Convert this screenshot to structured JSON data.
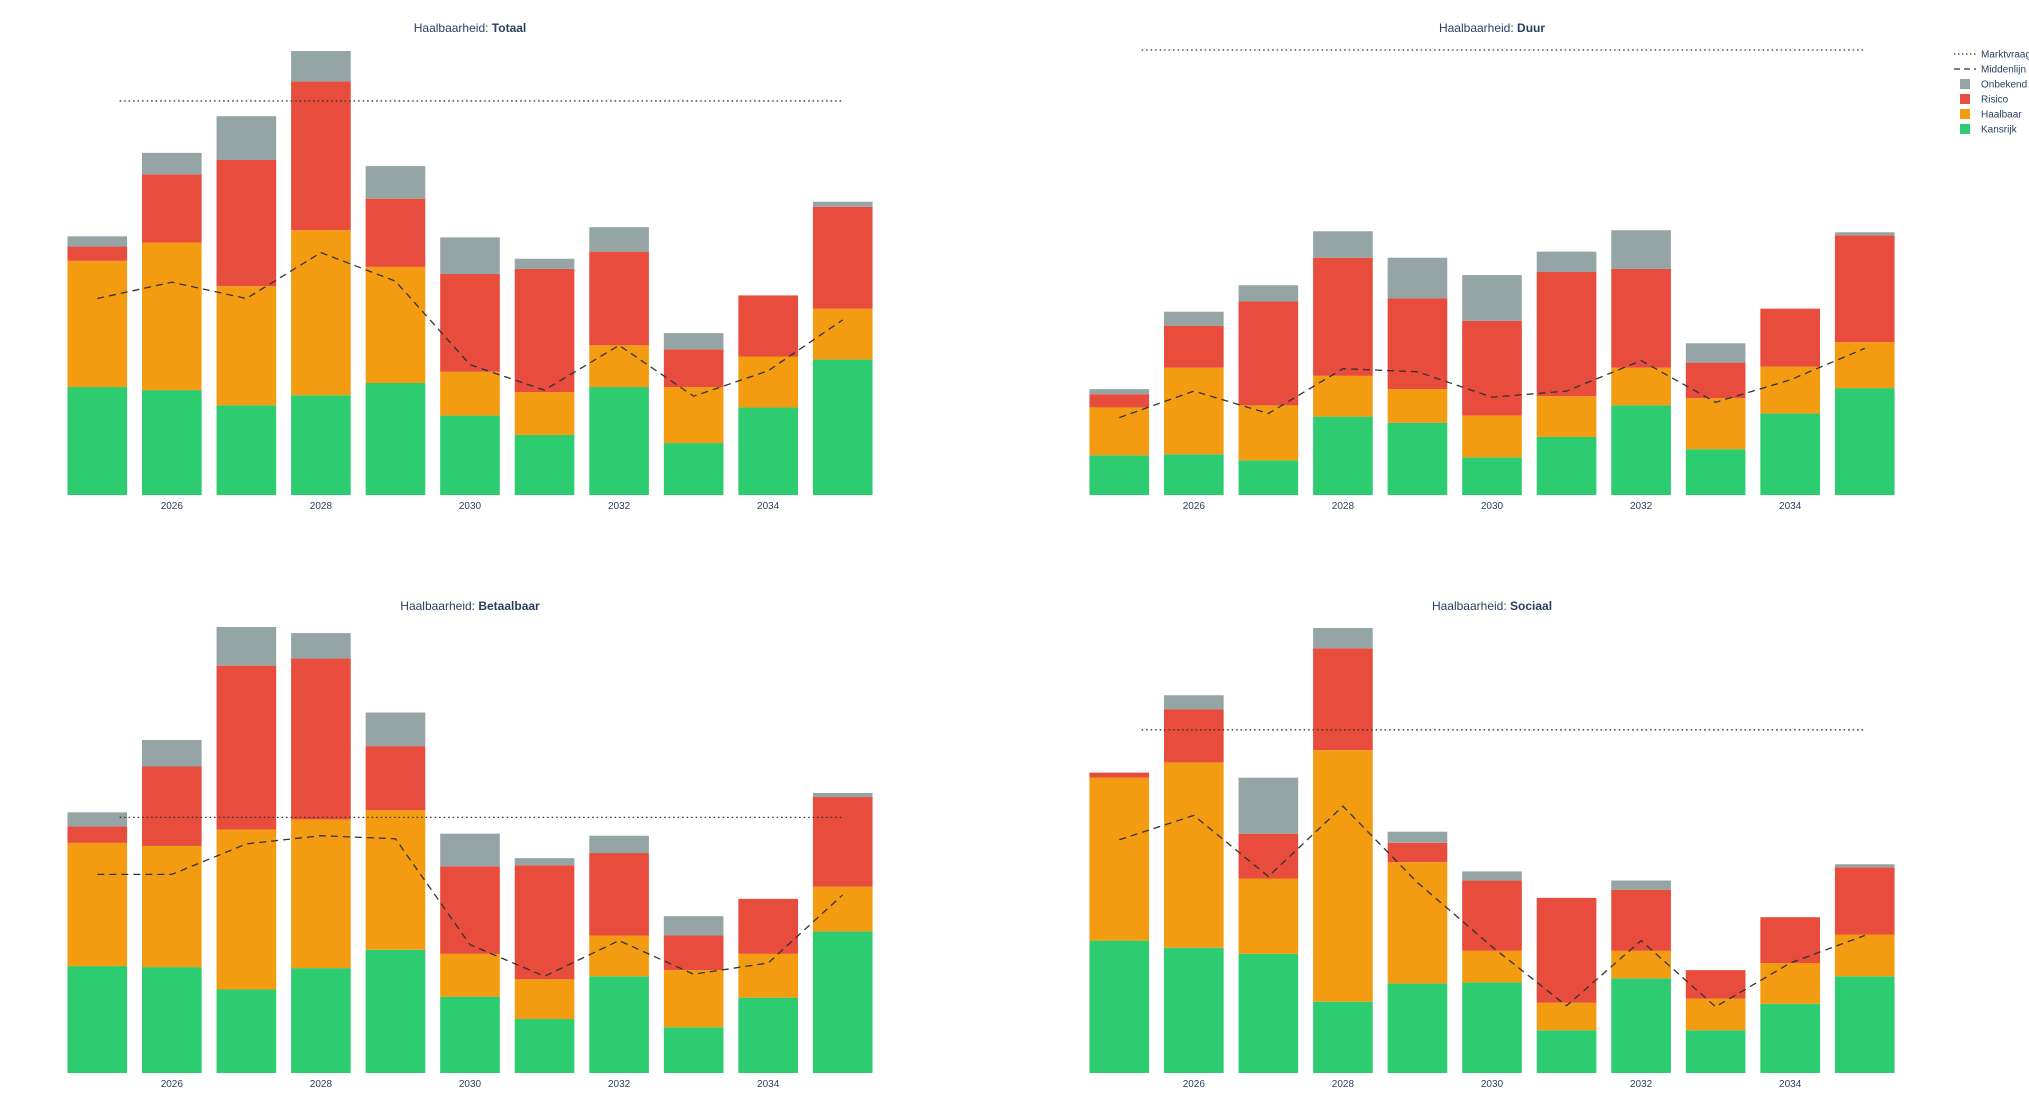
{
  "colors": {
    "Kansrijk": "#2ecc71",
    "Haalbaar": "#f39c12",
    "Risico": "#e74c3c",
    "Onbekend": "#95a5a6",
    "Middenlijn": "#333333",
    "Marktvraag": "#333333"
  },
  "legend": [
    {
      "key": "Marktvraag",
      "label": "Marktvraag",
      "kind": "dotted"
    },
    {
      "key": "Middenlijn",
      "label": "Middenlijn",
      "kind": "dashed"
    },
    {
      "key": "Onbekend",
      "label": "Onbekend",
      "kind": "box"
    },
    {
      "key": "Risico",
      "label": "Risico",
      "kind": "box"
    },
    {
      "key": "Haalbaar",
      "label": "Haalbaar",
      "kind": "box"
    },
    {
      "key": "Kansrijk",
      "label": "Kansrijk",
      "kind": "box"
    }
  ],
  "chart_data": [
    {
      "type": "bar",
      "stacked": true,
      "title_prefix": "Haalbaarheid: ",
      "title_bold": "Totaal",
      "x": [
        2025,
        2026,
        2027,
        2028,
        2029,
        2030,
        2031,
        2032,
        2033,
        2034,
        2035
      ],
      "x_tick_labels": [
        "2026",
        "2028",
        "2030",
        "2032",
        "2034"
      ],
      "x_tick_values": [
        2026,
        2028,
        2030,
        2032,
        2034
      ],
      "ylim": [
        0,
        437
      ],
      "series": [
        {
          "name": "Kansrijk",
          "values": [
            106,
            103,
            88,
            98,
            110,
            78,
            59,
            106,
            51,
            86,
            133
          ]
        },
        {
          "name": "Haalbaar",
          "values": [
            124,
            145,
            117,
            162,
            114,
            43,
            42,
            41,
            55,
            50,
            50
          ]
        },
        {
          "name": "Risico",
          "values": [
            14,
            67,
            124,
            146,
            67,
            96,
            121,
            92,
            37,
            60,
            100
          ]
        },
        {
          "name": "Onbekend",
          "values": [
            10,
            21,
            43,
            30,
            32,
            36,
            10,
            24,
            16,
            0,
            5
          ]
        }
      ],
      "middenlijn": [
        193,
        209,
        193,
        238,
        210,
        128,
        103,
        147,
        97,
        122,
        172
      ],
      "marktvraag": 387
    },
    {
      "type": "bar",
      "stacked": true,
      "title_prefix": "Haalbaarheid: ",
      "title_bold": "Duur",
      "x": [
        2025,
        2026,
        2027,
        2028,
        2029,
        2030,
        2031,
        2032,
        2033,
        2034,
        2035
      ],
      "x_tick_labels": [
        "2026",
        "2028",
        "2030",
        "2032",
        "2034"
      ],
      "x_tick_values": [
        2026,
        2028,
        2030,
        2032,
        2034
      ],
      "ylim": [
        0,
        437
      ],
      "series": [
        {
          "name": "Kansrijk",
          "values": [
            39,
            40,
            34,
            77,
            71,
            37,
            57,
            88,
            45,
            80,
            105
          ]
        },
        {
          "name": "Haalbaar",
          "values": [
            47,
            85,
            54,
            40,
            33,
            41,
            40,
            37,
            50,
            46,
            45
          ]
        },
        {
          "name": "Risico",
          "values": [
            13,
            41,
            102,
            116,
            89,
            93,
            122,
            97,
            35,
            57,
            105
          ]
        },
        {
          "name": "Onbekend",
          "values": [
            5,
            14,
            16,
            26,
            40,
            45,
            20,
            38,
            19,
            0,
            3
          ]
        }
      ],
      "middenlijn": [
        76,
        102,
        80,
        124,
        121,
        96,
        102,
        132,
        91,
        113,
        144
      ],
      "marktvraag": 437
    },
    {
      "type": "bar",
      "stacked": true,
      "title_prefix": "Haalbaarheid: ",
      "title_bold": "Betaalbaar",
      "x": [
        2025,
        2026,
        2027,
        2028,
        2029,
        2030,
        2031,
        2032,
        2033,
        2034,
        2035
      ],
      "x_tick_labels": [
        "2026",
        "2028",
        "2030",
        "2032",
        "2034"
      ],
      "x_tick_values": [
        2026,
        2028,
        2030,
        2032,
        2034
      ],
      "ylim": [
        0,
        437
      ],
      "series": [
        {
          "name": "Kansrijk",
          "values": [
            105,
            104,
            82,
            103,
            121,
            75,
            53,
            95,
            45,
            74,
            139
          ]
        },
        {
          "name": "Haalbaar",
          "values": [
            121,
            119,
            157,
            146,
            137,
            42,
            39,
            40,
            56,
            43,
            44
          ]
        },
        {
          "name": "Risico",
          "values": [
            16,
            78,
            161,
            158,
            63,
            86,
            112,
            81,
            34,
            54,
            88
          ]
        },
        {
          "name": "Onbekend",
          "values": [
            14,
            26,
            38,
            25,
            33,
            32,
            7,
            17,
            19,
            0,
            4
          ]
        }
      ],
      "middenlijn": [
        195,
        195,
        225,
        233,
        230,
        126,
        95,
        130,
        97,
        108,
        175
      ],
      "marktvraag": 251
    },
    {
      "type": "bar",
      "stacked": true,
      "title_prefix": "Haalbaarheid: ",
      "title_bold": "Sociaal",
      "x": [
        2025,
        2026,
        2027,
        2028,
        2029,
        2030,
        2031,
        2032,
        2033,
        2034,
        2035
      ],
      "x_tick_labels": [
        "2026",
        "2028",
        "2030",
        "2032",
        "2034"
      ],
      "x_tick_values": [
        2026,
        2028,
        2030,
        2032,
        2034
      ],
      "ylim": [
        0,
        437
      ],
      "series": [
        {
          "name": "Kansrijk",
          "values": [
            130,
            123,
            117,
            70,
            88,
            89,
            42,
            93,
            42,
            68,
            95
          ]
        },
        {
          "name": "Haalbaar",
          "values": [
            160,
            182,
            74,
            247,
            119,
            31,
            27,
            27,
            31,
            40,
            41
          ]
        },
        {
          "name": "Risico",
          "values": [
            5,
            52,
            44,
            100,
            19,
            69,
            103,
            60,
            28,
            45,
            66
          ]
        },
        {
          "name": "Onbekend",
          "values": [
            0,
            14,
            55,
            20,
            11,
            9,
            0,
            9,
            0,
            0,
            3
          ]
        }
      ],
      "middenlijn": [
        229,
        253,
        193,
        262,
        187,
        124,
        66,
        130,
        65,
        108,
        135
      ],
      "marktvraag": 337
    }
  ]
}
